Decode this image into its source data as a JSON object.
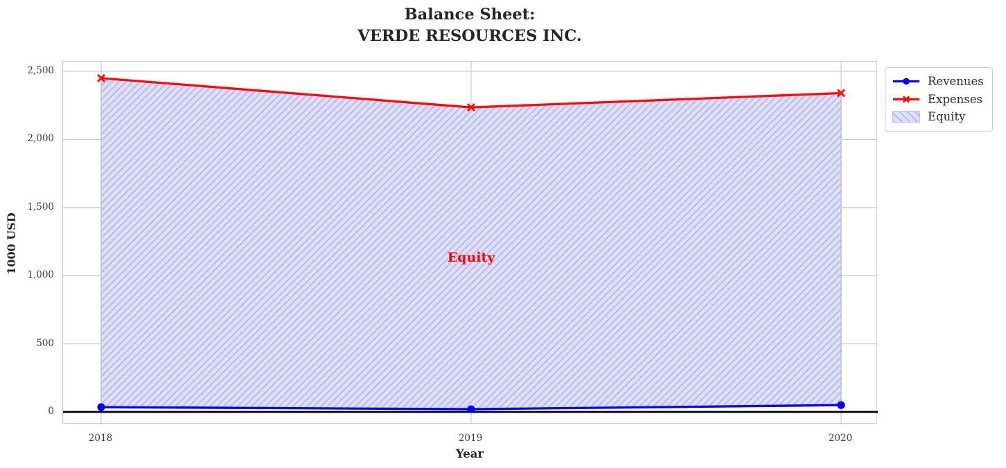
{
  "title": {
    "line1": "Balance Sheet:",
    "line2": "VERDE RESOURCES INC."
  },
  "chart_data": {
    "type": "line",
    "x": [
      2018,
      2019,
      2020
    ],
    "xtick_labels": [
      "2018",
      "2019",
      "2020"
    ],
    "series": [
      {
        "name": "Revenues",
        "values": [
          35,
          20,
          50
        ],
        "color": "#0202ee",
        "marker": "circle"
      },
      {
        "name": "Expenses",
        "values": [
          2450,
          2235,
          2340
        ],
        "color": "#fb0a0a",
        "marker": "x"
      }
    ],
    "area": {
      "name": "Equity",
      "between": [
        "Revenues",
        "Expenses"
      ],
      "fill_color": "#dfdff7",
      "hatch_color": "#b9b9ef",
      "hatch_style": "diagonal"
    },
    "annotation": {
      "text": "Equity",
      "x": 2019,
      "y": 1150,
      "color": "#ff0000"
    },
    "xlabel": "Year",
    "ylabel": "1000 USD",
    "ylim": [
      0,
      2500
    ],
    "yticks": [
      0,
      500,
      1000,
      1500,
      2000,
      2500
    ],
    "ytick_labels": [
      "0",
      "500",
      "1,000",
      "1,500",
      "2,000",
      "2,500"
    ],
    "grid": true,
    "gridline_color": "#cfcfcf",
    "zero_line": true,
    "zero_line_color": "#000000",
    "legend_position": "outside-top-right"
  }
}
